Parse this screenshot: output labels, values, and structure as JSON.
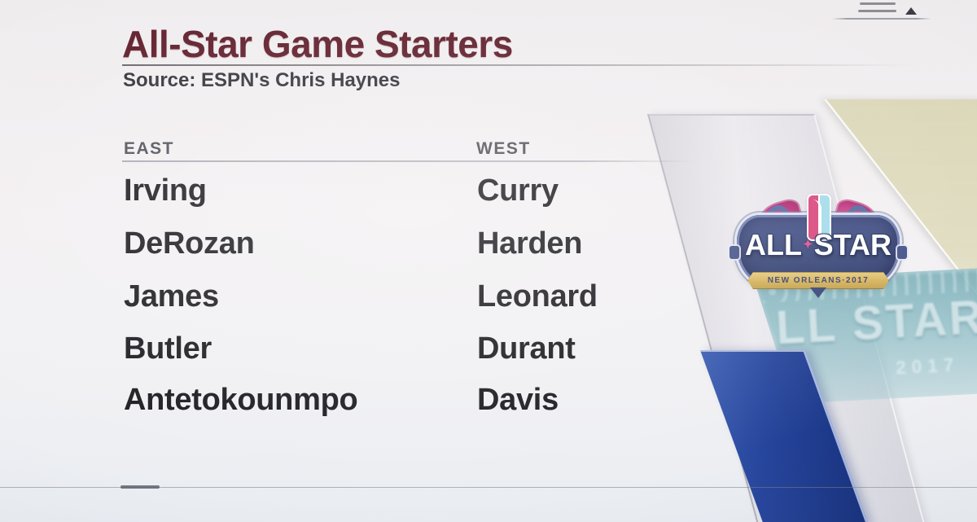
{
  "header": {
    "title": "All-Star Game Starters",
    "source": "Source: ESPN's Chris Haynes"
  },
  "roster": {
    "east": {
      "label": "EAST",
      "players": [
        "Irving",
        "DeRozan",
        "James",
        "Butler",
        "Antetokounmpo"
      ]
    },
    "west": {
      "label": "WEST",
      "players": [
        "Curry",
        "Harden",
        "Leonard",
        "Durant",
        "Davis"
      ]
    }
  },
  "logo": {
    "word_left": "ALL",
    "separator": "✦",
    "word_right": "STAR",
    "banner": "NEW ORLEANS·2017"
  },
  "watermark": {
    "big": "LL STAR",
    "year": "2017"
  },
  "chart_data": {
    "type": "table",
    "title": "All-Star Game Starters",
    "subtitle": "Source: ESPN's Chris Haynes",
    "columns": [
      "EAST",
      "WEST"
    ],
    "rows": [
      [
        "Irving",
        "Curry"
      ],
      [
        "DeRozan",
        "Harden"
      ],
      [
        "James",
        "Leonard"
      ],
      [
        "Butler",
        "Durant"
      ],
      [
        "Antetokounmpo",
        "Davis"
      ]
    ]
  },
  "colors": {
    "title_maroon": "#5c1826",
    "player_text": "#19191e",
    "header_gray": "#4e4e57",
    "accent_blue": "#26459c",
    "logo_navy": "#3c497c",
    "banner_gold": "#d4b25c",
    "watermark_teal": "#76acb6",
    "band_khaki": "#d3ce9d",
    "wing_pink": "#b72f77"
  }
}
